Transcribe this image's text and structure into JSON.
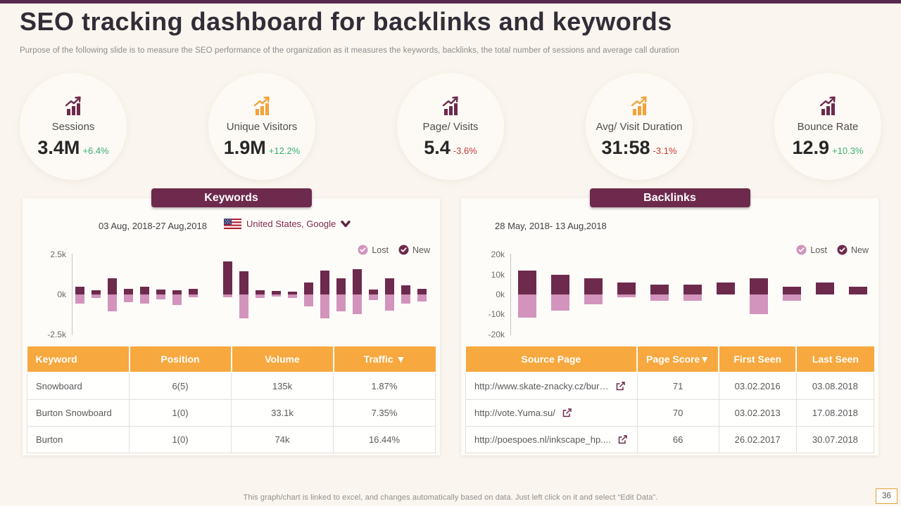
{
  "slide": {
    "title": "SEO tracking dashboard for backlinks and keywords",
    "subtitle": "Purpose of the following slide is to measure the SEO performance of the organization as it measures the keywords, backlinks, the total number of sessions and average call duration",
    "footer_note": "This graph/chart is linked to excel, and changes automatically based on data. Just left click on it and select “Edit Data”.",
    "page_number": "36"
  },
  "colors": {
    "brand_dark": "#6d2a4c",
    "brand_pink": "#d294bc",
    "accent_orange": "#f2a33a",
    "positive_green": "#3bae71",
    "negative_red": "#c23b3b",
    "table_header_orange": "#f7a83e"
  },
  "kpis": [
    {
      "label": "Sessions",
      "value": "3.4M",
      "delta": "+6.4%",
      "trend": "up",
      "icon": "bar-chart-up-icon",
      "icon_color": "#6d2a4c"
    },
    {
      "label": "Unique Visitors",
      "value": "1.9M",
      "delta": "+12.2%",
      "trend": "up",
      "icon": "bar-chart-up-icon",
      "icon_color": "#f2a33a"
    },
    {
      "label": "Page/ Visits",
      "value": "5.4",
      "delta": "-3.6%",
      "trend": "down",
      "icon": "bar-chart-up-icon",
      "icon_color": "#6d2a4c"
    },
    {
      "label": "Avg/ Visit Duration",
      "value": "31:58",
      "delta": "-3.1%",
      "trend": "down",
      "icon": "bar-chart-up-icon",
      "icon_color": "#f2a33a"
    },
    {
      "label": "Bounce Rate",
      "value": "12.9",
      "delta": "+10.3%",
      "trend": "up",
      "icon": "bar-chart-up-icon",
      "icon_color": "#6d2a4c"
    }
  ],
  "keywords_section": {
    "badge": "Keywords",
    "date_range": "03 Aug, 2018-27 Aug,2018",
    "locale": "United States, Google",
    "legend": [
      {
        "label": "Lost",
        "color": "#d294bc"
      },
      {
        "label": "New",
        "color": "#6d2a4c"
      }
    ],
    "table": {
      "headers": [
        "Keyword",
        "Position",
        "Volume",
        "Traffic ▼"
      ],
      "col_widths": [
        "25%",
        "25%",
        "25%",
        "25%"
      ],
      "rows": [
        [
          "Snowboard",
          "6(5)",
          "135k",
          "1.87%"
        ],
        [
          "Burton Snowboard",
          "1(0)",
          "33.1k",
          "7.35%"
        ],
        [
          "Burton",
          "1(0)",
          "74k",
          "16.44%"
        ]
      ]
    }
  },
  "backlinks_section": {
    "badge": "Backlinks",
    "date_range": "28 May, 2018- 13 Aug,2018",
    "legend": [
      {
        "label": "Lost",
        "color": "#d294bc"
      },
      {
        "label": "New",
        "color": "#6d2a4c"
      }
    ],
    "table": {
      "headers": [
        "Source Page",
        "Page Score▼",
        "First Seen",
        "Last Seen"
      ],
      "col_widths": [
        "42%",
        "20%",
        "19%",
        "19%"
      ],
      "link_icon_col": 0,
      "rows": [
        [
          "http://www.skate-znacky.cz/bur…",
          "71",
          "03.02.2016",
          "03.08.2018"
        ],
        [
          "http://vote.Yuma.su/",
          "70",
          "03.02.2013",
          "17.08.2018"
        ],
        [
          "http://poespoes.nl/inkscape_hp....",
          "66",
          "26.02.2017",
          "30.07.2018"
        ]
      ]
    }
  },
  "chart_data": [
    {
      "id": "keywords-chart",
      "type": "bar",
      "title": "Keywords new vs lost (03 Aug, 2018-27 Aug,2018)",
      "ylabel": "keywords",
      "ylim": [
        -2.5,
        2.5
      ],
      "yticks": [
        {
          "v": 2.5,
          "label": "2.5k"
        },
        {
          "v": 0,
          "label": "0k"
        },
        {
          "v": -2.5,
          "label": "-2.5k"
        }
      ],
      "legend_position": "top-right",
      "grid": false,
      "gap_after_index": 8,
      "series": [
        {
          "name": "New",
          "color": "#6d2a4c",
          "values": [
            0.5,
            0.27,
            1.0,
            0.37,
            0.5,
            0.33,
            0.28,
            0.35,
            2.05,
            1.45,
            0.25,
            0.2,
            0.18,
            0.77,
            1.5,
            1.0,
            1.6,
            0.33,
            1.0,
            0.58,
            0.35
          ]
        },
        {
          "name": "Lost",
          "color": "#d294bc",
          "values": [
            -0.55,
            -0.23,
            -1.05,
            -0.5,
            -0.55,
            -0.3,
            -0.65,
            -0.18,
            -0.17,
            -1.5,
            -0.2,
            -0.15,
            -0.2,
            -0.75,
            -1.5,
            -1.05,
            -1.25,
            -0.35,
            -1.0,
            -0.55,
            -0.42
          ]
        }
      ]
    },
    {
      "id": "backlinks-chart",
      "type": "bar",
      "title": "Backlinks new vs lost (28 May, 2018- 13 Aug,2018)",
      "ylabel": "backlinks",
      "ylim": [
        -20,
        20
      ],
      "yticks": [
        {
          "v": 20,
          "label": "20k"
        },
        {
          "v": 10,
          "label": "10k"
        },
        {
          "v": 0,
          "label": "0k"
        },
        {
          "v": -10,
          "label": "-10k"
        },
        {
          "v": -20,
          "label": "-20k"
        }
      ],
      "legend_position": "top-right",
      "grid": false,
      "gap_after_index": -1,
      "series": [
        {
          "name": "New",
          "color": "#6d2a4c",
          "values": [
            12,
            10,
            8,
            6,
            5,
            5,
            6,
            8,
            4,
            6,
            4
          ]
        },
        {
          "name": "Lost",
          "color": "#d294bc",
          "values": [
            -11.5,
            -8,
            -5,
            -1.5,
            -3,
            -3,
            0,
            -10,
            -3,
            0,
            0
          ]
        }
      ]
    }
  ]
}
